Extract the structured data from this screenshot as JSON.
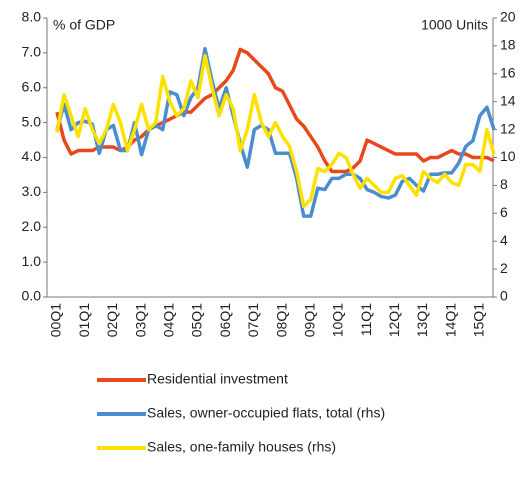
{
  "chart_data": {
    "type": "line",
    "ylabel": "% of GDP",
    "y2label": "1000 Units",
    "categories": [
      "00Q1",
      null,
      null,
      null,
      "01Q1",
      null,
      null,
      null,
      "02Q1",
      null,
      null,
      null,
      "03Q1",
      null,
      null,
      null,
      "04Q1",
      null,
      null,
      null,
      "05Q1",
      null,
      null,
      null,
      "06Q1",
      null,
      null,
      null,
      "07Q1",
      null,
      null,
      null,
      "08Q1",
      null,
      null,
      null,
      "09Q1",
      null,
      null,
      null,
      "10Q1",
      null,
      null,
      null,
      "11Q1",
      null,
      null,
      null,
      "12Q1",
      null,
      null,
      null,
      "13Q1",
      null,
      null,
      null,
      "14Q1",
      null,
      null,
      null,
      "15Q1",
      null,
      null
    ],
    "series": [
      {
        "name": "Residential investment",
        "color": "#e8481c",
        "axis": "y",
        "values": [
          5.3,
          4.5,
          4.1,
          4.2,
          4.2,
          4.2,
          4.3,
          4.3,
          4.3,
          4.2,
          4.3,
          4.5,
          4.6,
          4.8,
          4.9,
          5.0,
          5.1,
          5.2,
          5.3,
          5.3,
          5.5,
          5.7,
          5.8,
          6.0,
          6.2,
          6.5,
          7.1,
          7.0,
          6.8,
          6.6,
          6.4,
          6.0,
          5.9,
          5.5,
          5.1,
          4.9,
          4.6,
          4.3,
          3.9,
          3.6,
          3.6,
          3.6,
          3.7,
          3.9,
          4.5,
          4.4,
          4.3,
          4.2,
          4.1,
          4.1,
          4.1,
          4.1,
          3.9,
          4.0,
          4.0,
          4.1,
          4.2,
          4.1,
          4.1,
          4.0,
          4.0,
          4.0,
          3.9
        ]
      },
      {
        "name": "Sales, owner-occupied flats, total (rhs)",
        "color": "#4a8ed0",
        "axis": "y2",
        "values": [
          12,
          13.8,
          12,
          12.5,
          12.6,
          12.4,
          10.3,
          12,
          12.3,
          10.5,
          10.5,
          12.5,
          10.2,
          12,
          12.3,
          12,
          14.7,
          14.5,
          13,
          14.3,
          15,
          17.8,
          15.5,
          13.5,
          15,
          13,
          11,
          9.3,
          12,
          12.3,
          12,
          10.3,
          10.3,
          10.3,
          8.5,
          5.8,
          5.8,
          7.8,
          7.7,
          8.5,
          8.5,
          8.8,
          8.8,
          8.5,
          7.7,
          7.5,
          7.2,
          7.1,
          7.3,
          8.3,
          8.5,
          8,
          7.6,
          8.8,
          8.8,
          8.9,
          8.9,
          9.6,
          10.8,
          11.2,
          13,
          13.6,
          12
        ]
      },
      {
        "name": "Sales, one-family houses (rhs)",
        "color": "#ffe100",
        "axis": "y2",
        "values": [
          11.8,
          14.5,
          13,
          11.5,
          13.5,
          12,
          11,
          12,
          13.8,
          12.5,
          10.5,
          12,
          13.8,
          12,
          12.5,
          15.8,
          14,
          13,
          13.5,
          15.5,
          14.3,
          17.3,
          15,
          13,
          14.5,
          13.5,
          10.5,
          12,
          14.5,
          12.5,
          11.5,
          12.5,
          11.5,
          10.8,
          9,
          6.5,
          7,
          9.2,
          9,
          9.5,
          10.3,
          10,
          8.8,
          7.8,
          8.5,
          8,
          7.5,
          7.5,
          8.5,
          8.7,
          8,
          7.3,
          9,
          8.5,
          8.2,
          8.8,
          8.2,
          8,
          9.5,
          9.5,
          9,
          12,
          10.2
        ]
      }
    ],
    "ylim": [
      0,
      8
    ],
    "yticks": [
      {
        "value": 0,
        "label": "0.0"
      },
      {
        "value": 1,
        "label": "1.0"
      },
      {
        "value": 2,
        "label": "2.0"
      },
      {
        "value": 3,
        "label": "3.0"
      },
      {
        "value": 4,
        "label": "4.0"
      },
      {
        "value": 5,
        "label": "5.0"
      },
      {
        "value": 6,
        "label": "6.0"
      },
      {
        "value": 7,
        "label": "7.0"
      },
      {
        "value": 8,
        "label": "8.0"
      }
    ],
    "y2lim": [
      0,
      20
    ],
    "y2ticks": [
      0,
      2,
      4,
      6,
      8,
      10,
      12,
      14,
      16,
      18,
      20
    ],
    "legend": "bottom"
  }
}
